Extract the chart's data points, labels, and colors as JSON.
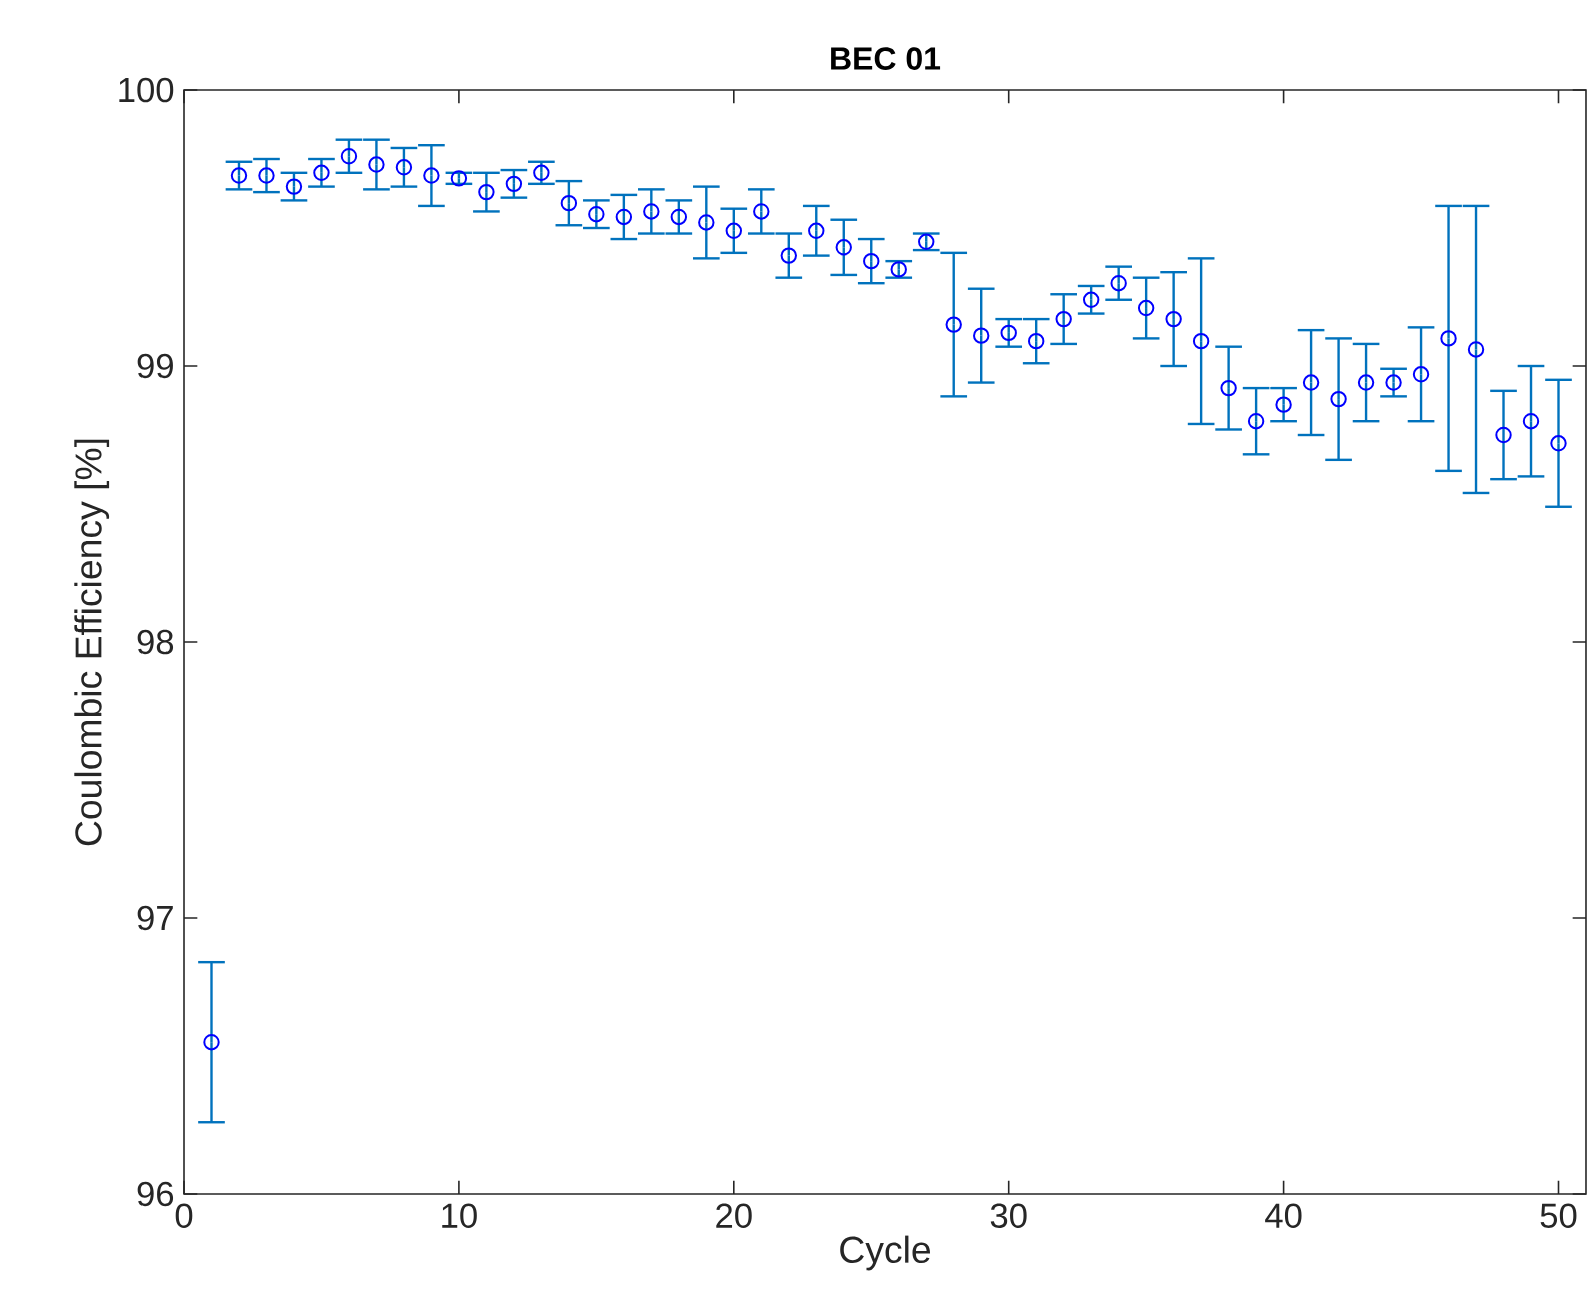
{
  "chart_data": {
    "type": "scatter",
    "title": "BEC 01",
    "xlabel": "Cycle",
    "ylabel": "Coulombic Efficiency [%]",
    "x": [
      1,
      2,
      3,
      4,
      5,
      6,
      7,
      8,
      9,
      10,
      11,
      12,
      13,
      14,
      15,
      16,
      17,
      18,
      19,
      20,
      21,
      22,
      23,
      24,
      25,
      26,
      27,
      28,
      29,
      30,
      31,
      32,
      33,
      34,
      35,
      36,
      37,
      38,
      39,
      40,
      41,
      42,
      43,
      44,
      45,
      46,
      47,
      48,
      49,
      50
    ],
    "series": [
      {
        "color": "#0000ff",
        "values": [
          96.55,
          99.69,
          99.69,
          99.65,
          99.7,
          99.76,
          99.73,
          99.72,
          99.69,
          99.68,
          99.63,
          99.66,
          99.7,
          99.59,
          99.55,
          99.54,
          99.56,
          99.54,
          99.52,
          99.49,
          99.56,
          99.4,
          99.49,
          99.43,
          99.38,
          99.35,
          99.45,
          99.15,
          99.11,
          99.12,
          99.09,
          99.17,
          99.24,
          99.3,
          99.21,
          99.17,
          99.09,
          98.92,
          98.8,
          98.86,
          98.94,
          98.88,
          98.94,
          98.94,
          98.97,
          99.1,
          99.06,
          98.75,
          98.8,
          98.72
        ],
        "errors": [
          0.29,
          0.05,
          0.06,
          0.05,
          0.05,
          0.06,
          0.09,
          0.07,
          0.11,
          0.02,
          0.07,
          0.05,
          0.04,
          0.08,
          0.05,
          0.08,
          0.08,
          0.06,
          0.13,
          0.08,
          0.08,
          0.08,
          0.09,
          0.1,
          0.08,
          0.03,
          0.03,
          0.26,
          0.17,
          0.05,
          0.08,
          0.09,
          0.05,
          0.06,
          0.11,
          0.17,
          0.3,
          0.15,
          0.12,
          0.06,
          0.19,
          0.22,
          0.14,
          0.05,
          0.17,
          0.48,
          0.52,
          0.16,
          0.2,
          0.23
        ]
      }
    ],
    "xlim": [
      0,
      51
    ],
    "xticks": [
      0,
      10,
      20,
      30,
      40,
      50
    ],
    "ylim": [
      96,
      100
    ],
    "yticks": [
      96,
      97,
      98,
      99,
      100
    ],
    "grid": false,
    "marker": "circle"
  }
}
